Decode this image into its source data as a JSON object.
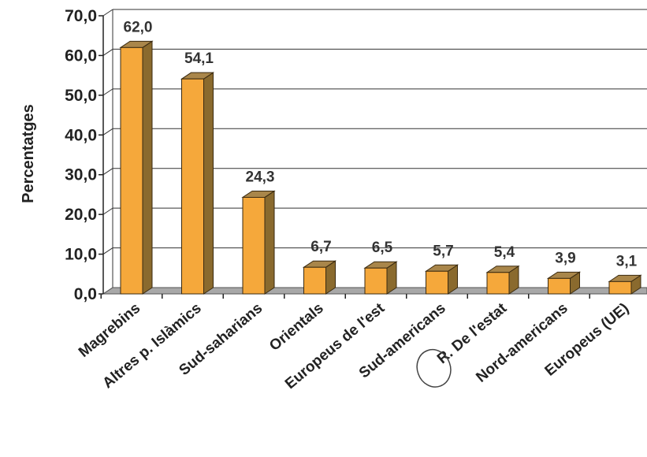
{
  "chart_data": {
    "type": "bar",
    "title": "",
    "xlabel": "",
    "ylabel": "Percentatges",
    "categories": [
      "Magrebins",
      "Altres p. Islàmics",
      "Sud-saharians",
      "Orientals",
      "Europeus de l'est",
      "Sud-americans",
      "R. De l'estat",
      "Nord-americans",
      "Europeus (UE)"
    ],
    "values": [
      62.0,
      54.1,
      24.3,
      6.7,
      6.5,
      5.7,
      5.4,
      3.9,
      3.1
    ],
    "data_labels": [
      "62,0",
      "54,1",
      "24,3",
      "6,7",
      "6,5",
      "5,7",
      "5,4",
      "3,9",
      "3,1"
    ],
    "ylim": [
      0,
      70
    ],
    "yticks": [
      0,
      10,
      20,
      30,
      40,
      50,
      60,
      70
    ],
    "ytick_labels": [
      "0,0",
      "10,0",
      "20,0",
      "30,0",
      "40,0",
      "50,0",
      "60,0",
      "70,0"
    ],
    "grid": true,
    "legend": "none",
    "bar_color": "#F5A83B",
    "bar_side_color": "#8A6A2E",
    "bar_top_color": "#A9864A",
    "floor_color": "#A8A8A8",
    "grid_color": "#333333",
    "annotation_circle_on": "R. De l'estat"
  }
}
